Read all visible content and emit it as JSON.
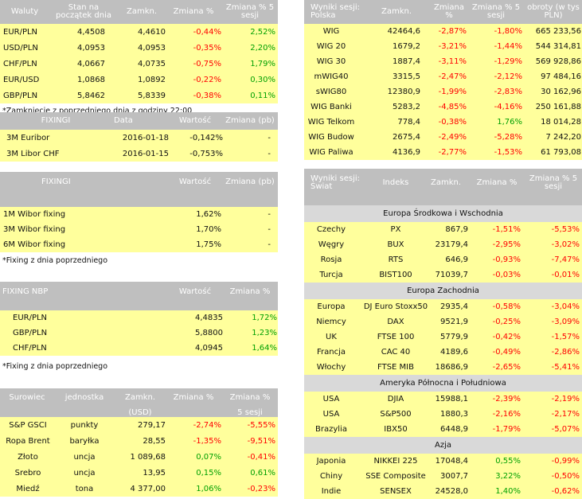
{
  "waluty": {
    "headers": [
      "Waluty",
      "Stan na początek dnia",
      "Zamkn.",
      "Zmiana %",
      "Zmiana % 5 sesji"
    ],
    "rows": [
      [
        "EUR/PLN",
        "4,4508",
        "4,4610",
        "-0,44%",
        "2,52%"
      ],
      [
        "USD/PLN",
        "4,0953",
        "4,0953",
        "-0,35%",
        "2,20%"
      ],
      [
        "CHF/PLN",
        "4,0667",
        "4,0735",
        "-0,75%",
        "1,79%"
      ],
      [
        "EUR/USD",
        "1,0868",
        "1,0892",
        "-0,22%",
        "0,30%"
      ],
      [
        "GBP/PLN",
        "5,8462",
        "5,8339",
        "-0,38%",
        "0,11%"
      ]
    ],
    "note": "*Zamknięcie z poprzedniego dnia z godziny 22:00"
  },
  "fixingi1": {
    "headers": [
      "FIXINGI",
      "Data",
      "Wartość",
      "Zmiana (pb)"
    ],
    "rows": [
      [
        "3M Euribor",
        "2016-01-18",
        "-0,142%",
        "-"
      ],
      [
        "3M Libor CHF",
        "2016-01-15",
        "-0,753%",
        "-"
      ]
    ]
  },
  "fixingi2": {
    "headers": [
      "FIXINGI",
      "Wartość",
      "Zmiana (pb)"
    ],
    "rows": [
      [
        "1M Wibor fixing",
        "1,62%",
        "-"
      ],
      [
        "3M Wibor fixing",
        "1,70%",
        "-"
      ],
      [
        "6M Wibor fixing",
        "1,75%",
        "-"
      ]
    ],
    "note": "*Fixing z dnia poprzedniego"
  },
  "nbp": {
    "headers": [
      "FIXING NBP",
      "Wartość",
      "Zmiana %"
    ],
    "rows": [
      [
        "EUR/PLN",
        "4,4835",
        "1,72%"
      ],
      [
        "GBP/PLN",
        "5,8800",
        "1,23%"
      ],
      [
        "CHF/PLN",
        "4,0945",
        "1,64%"
      ]
    ],
    "note": "*Fixing z dnia poprzedniego"
  },
  "surowce": {
    "headers": [
      "Surowiec",
      "jednostka",
      "Zamkn.",
      "Zmiana %",
      "Zmiana %"
    ],
    "subheaders": [
      "(USD)",
      "5 sesji"
    ],
    "rows": [
      [
        "S&P GSCI",
        "punkty",
        "279,17",
        "-2,74%",
        "-5,55%"
      ],
      [
        "Ropa Brent",
        "baryłka",
        "28,55",
        "-1,35%",
        "-9,51%"
      ],
      [
        "Złoto",
        "uncja",
        "1 089,68",
        "0,07%",
        "-0,41%"
      ],
      [
        "Srebro",
        "uncja",
        "13,95",
        "0,15%",
        "0,61%"
      ],
      [
        "Miedź",
        "tona",
        "4 377,00",
        "1,06%",
        "-0,23%"
      ]
    ]
  },
  "polska": {
    "headers": [
      "Wyniki sesji: Polska",
      "Zamkn.",
      "Zmiana %",
      "Zmiana % 5 sesji",
      "obroty (w tys PLN)"
    ],
    "rows": [
      [
        "WIG",
        "42464,6",
        "-2,87%",
        "-1,80%",
        "665 233,56"
      ],
      [
        "WIG 20",
        "1679,2",
        "-3,21%",
        "-1,44%",
        "544 314,81"
      ],
      [
        "WIG 30",
        "1887,4",
        "-3,11%",
        "-1,29%",
        "569 928,86"
      ],
      [
        "mWIG40",
        "3315,5",
        "-2,47%",
        "-2,12%",
        "97 484,16"
      ],
      [
        "sWIG80",
        "12380,9",
        "-1,99%",
        "-2,83%",
        "30 162,96"
      ],
      [
        "WIG Banki",
        "5283,2",
        "-4,85%",
        "-4,16%",
        "250 161,88"
      ],
      [
        "WIG Telkom",
        "778,4",
        "-0,38%",
        "1,76%",
        "18 014,28"
      ],
      [
        "WIG Budow",
        "2675,4",
        "-2,49%",
        "-5,28%",
        "7 242,20"
      ],
      [
        "WIG Paliwa",
        "4136,9",
        "-2,77%",
        "-1,53%",
        "61 793,08"
      ]
    ]
  },
  "swiat": {
    "headers": [
      "Wyniki sesji: Świat",
      "Indeks",
      "Zamkn.",
      "Zmiana %",
      "Zmiana % 5 sesji"
    ],
    "sections": [
      {
        "title": "Europa Środkowa i Wschodnia",
        "rows": [
          [
            "Czechy",
            "PX",
            "867,9",
            "-1,51%",
            "-5,53%"
          ],
          [
            "Węgry",
            "BUX",
            "23179,4",
            "-2,95%",
            "-3,02%"
          ],
          [
            "Rosja",
            "RTS",
            "646,9",
            "-0,93%",
            "-7,47%"
          ],
          [
            "Turcja",
            "BIST100",
            "71039,7",
            "-0,03%",
            "-0,01%"
          ]
        ]
      },
      {
        "title": "Europa Zachodnia",
        "rows": [
          [
            "Europa",
            "DJ Euro Stoxx50",
            "2935,4",
            "-0,58%",
            "-3,04%"
          ],
          [
            "Niemcy",
            "DAX",
            "9521,9",
            "-0,25%",
            "-3,09%"
          ],
          [
            "UK",
            "FTSE 100",
            "5779,9",
            "-0,42%",
            "-1,57%"
          ],
          [
            "Francja",
            "CAC 40",
            "4189,6",
            "-0,49%",
            "-2,86%"
          ],
          [
            "Włochy",
            "FTSE MIB",
            "18686,9",
            "-2,65%",
            "-5,41%"
          ]
        ]
      },
      {
        "title": "Ameryka Północna i Południowa",
        "rows": [
          [
            "USA",
            "DJIA",
            "15988,1",
            "-2,39%",
            "-2,19%"
          ],
          [
            "USA",
            "S&P500",
            "1880,3",
            "-2,16%",
            "-2,17%"
          ],
          [
            "Brazylia",
            "IBX50",
            "6448,9",
            "-1,79%",
            "-5,07%"
          ]
        ]
      },
      {
        "title": "Azja",
        "rows": [
          [
            "Japonia",
            "NIKKEI 225",
            "17048,4",
            "0,55%",
            "-0,99%"
          ],
          [
            "Chiny",
            "SSE Composite",
            "3007,7",
            "3,22%",
            "-0,50%"
          ],
          [
            "Indie",
            "SENSEX",
            "24528,0",
            "1,40%",
            "-0,62%"
          ]
        ]
      }
    ]
  },
  "colors": {
    "header_bg": "#bfbfbf",
    "row_yellow": "#ffff9c",
    "section_bg": "#d9d9d9",
    "negative": "#ff0000",
    "positive": "#00a000"
  }
}
